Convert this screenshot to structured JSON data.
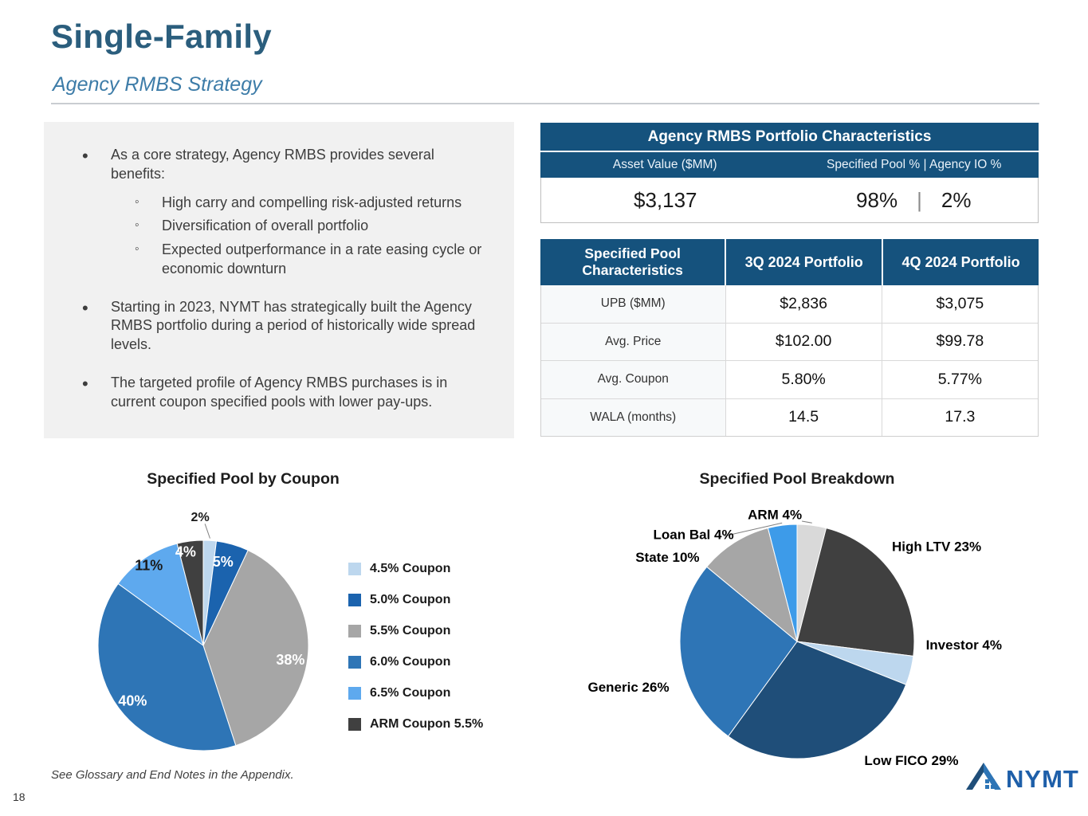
{
  "header": {
    "title": "Single-Family",
    "subtitle": "Agency RMBS Strategy"
  },
  "bullets": {
    "b1": "As a core strategy, Agency RMBS provides several benefits:",
    "b1_subs": [
      "High carry and compelling risk-adjusted returns",
      "Diversification of overall portfolio",
      "Expected outperformance in a rate easing cycle or economic downturn"
    ],
    "b2": "Starting in 2023, NYMT has strategically built the Agency RMBS portfolio during a period of historically wide spread levels.",
    "b3": "The targeted profile of Agency RMBS purchases is in current coupon specified pools with lower pay-ups."
  },
  "portfolio_table": {
    "title": "Agency RMBS Portfolio Characteristics",
    "col1_header": "Asset Value ($MM)",
    "col2_header": "Specified Pool %  |  Agency IO %",
    "col1_value": "$3,137",
    "col2_value_left": "98%",
    "col2_sep": "|",
    "col2_value_right": "2%"
  },
  "pool_table": {
    "headers": [
      "Specified Pool Characteristics",
      "3Q 2024 Portfolio",
      "4Q 2024 Portfolio"
    ],
    "rows": [
      {
        "label": "UPB ($MM)",
        "q3": "$2,836",
        "q4": "$3,075"
      },
      {
        "label": "Avg. Price",
        "q3": "$102.00",
        "q4": "$99.78"
      },
      {
        "label": "Avg. Coupon",
        "q3": "5.80%",
        "q4": "5.77%"
      },
      {
        "label": "WALA (months)",
        "q3": "14.5",
        "q4": "17.3"
      }
    ]
  },
  "chart_data": [
    {
      "type": "pie",
      "title": "Specified Pool by Coupon",
      "legend_position": "right",
      "slices": [
        {
          "name": "4.5% Coupon",
          "value": 2,
          "label": "2%",
          "color": "#BDD7EE"
        },
        {
          "name": "5.0% Coupon",
          "value": 5,
          "label": "5%",
          "color": "#1B63AE"
        },
        {
          "name": "5.5% Coupon",
          "value": 38,
          "label": "38%",
          "color": "#A6A6A6"
        },
        {
          "name": "6.0% Coupon",
          "value": 40,
          "label": "40%",
          "color": "#2E75B6"
        },
        {
          "name": "6.5% Coupon",
          "value": 11,
          "label": "11%",
          "color": "#5EA9EE"
        },
        {
          "name": "ARM Coupon 5.5%",
          "value": 4,
          "label": "4%",
          "color": "#404040"
        }
      ]
    },
    {
      "type": "pie",
      "title": "Specified Pool Breakdown",
      "legend_position": "none",
      "slices": [
        {
          "name": "ARM",
          "value": 4,
          "label": "ARM 4%",
          "color": "#D9D9D9"
        },
        {
          "name": "High LTV",
          "value": 23,
          "label": "High LTV 23%",
          "color": "#404040"
        },
        {
          "name": "Investor",
          "value": 4,
          "label": "Investor 4%",
          "color": "#BDD7EE"
        },
        {
          "name": "Low FICO",
          "value": 29,
          "label": "Low FICO 29%",
          "color": "#1F4E79"
        },
        {
          "name": "Generic",
          "value": 26,
          "label": "Generic 26%",
          "color": "#2E75B6"
        },
        {
          "name": "State",
          "value": 10,
          "label": "State 10%",
          "color": "#A6A6A6"
        },
        {
          "name": "Loan Bal",
          "value": 4,
          "label": "Loan Bal 4%",
          "color": "#3D9BE9"
        }
      ]
    }
  ],
  "footer": {
    "footnote": "See Glossary and End Notes in the Appendix.",
    "page_number": "18",
    "logo_text": "NYMT"
  },
  "colors": {
    "table_header_bg": "#15527D",
    "title_color": "#2B5E7D",
    "subtitle_color": "#3D7CA8",
    "accent_blue": "#2E75B6"
  }
}
